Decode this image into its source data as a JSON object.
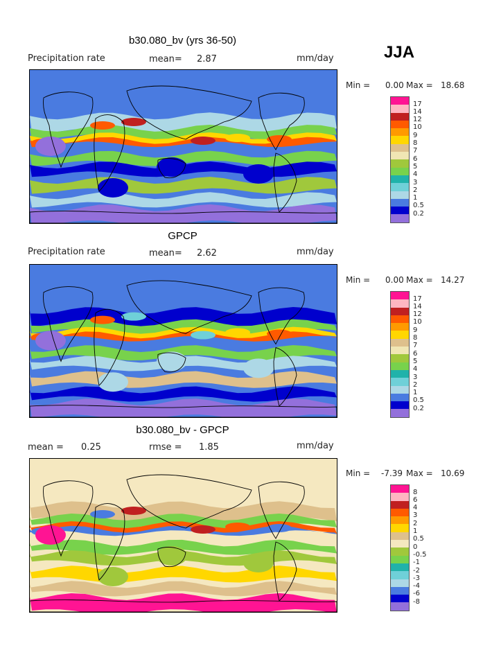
{
  "season": "JJA",
  "panels": [
    {
      "title": "b30.080_bv (yrs 36-50)",
      "left_label": "Precipitation rate",
      "mean_label": "mean=",
      "mean_value": "2.87",
      "extra_label": "",
      "extra_value": "",
      "units": "mm/day",
      "min_label": "Min =",
      "min_value": "0.00",
      "max_label": "Max =",
      "max_value": "18.68",
      "colorbar": {
        "labels": [
          "17",
          "14",
          "12",
          "10",
          "9",
          "8",
          "7",
          "6",
          "5",
          "4",
          "3",
          "2",
          "1",
          "0.5",
          "0.2"
        ],
        "colors": [
          "#ff1493",
          "#ffb6c1",
          "#c02020",
          "#ff5a00",
          "#ff9a00",
          "#ffd700",
          "#dec08c",
          "#f0e6b4",
          "#a0c83c",
          "#78d24c",
          "#20b2aa",
          "#6fd0d8",
          "#add8e6",
          "#4a7be0",
          "#0000cd",
          "#9370db"
        ]
      },
      "map_palette": "model"
    },
    {
      "title": "GPCP",
      "left_label": "Precipitation rate",
      "mean_label": "mean=",
      "mean_value": "2.62",
      "extra_label": "",
      "extra_value": "",
      "units": "mm/day",
      "min_label": "Min =",
      "min_value": "0.00",
      "max_label": "Max =",
      "max_value": "14.27",
      "colorbar": {
        "labels": [
          "17",
          "14",
          "12",
          "10",
          "9",
          "8",
          "7",
          "6",
          "5",
          "4",
          "3",
          "2",
          "1",
          "0.5",
          "0.2"
        ],
        "colors": [
          "#ff1493",
          "#ffb6c1",
          "#c02020",
          "#ff5a00",
          "#ff9a00",
          "#ffd700",
          "#dec08c",
          "#f0e6b4",
          "#a0c83c",
          "#78d24c",
          "#20b2aa",
          "#6fd0d8",
          "#add8e6",
          "#4a7be0",
          "#0000cd",
          "#9370db"
        ]
      },
      "map_palette": "obs"
    },
    {
      "title": "b30.080_bv - GPCP",
      "left_label": "mean =",
      "mean_label": "",
      "mean_value": "0.25",
      "extra_label": "rmse =",
      "extra_value": "1.85",
      "units": "mm/day",
      "min_label": "Min =",
      "min_value": "-7.39",
      "max_label": "Max =",
      "max_value": "10.69",
      "colorbar": {
        "labels": [
          "8",
          "6",
          "4",
          "3",
          "2",
          "1",
          "0.5",
          "0",
          "-0.5",
          "-1",
          "-2",
          "-3",
          "-4",
          "-6",
          "-8"
        ],
        "colors": [
          "#ff1493",
          "#ffb6c1",
          "#c02020",
          "#ff5a00",
          "#ff9a00",
          "#ffd700",
          "#dec08c",
          "#f5e8c0",
          "#a0c83c",
          "#78d24c",
          "#20b2aa",
          "#6fd0d8",
          "#add8e6",
          "#4a7be0",
          "#0000cd",
          "#9370db"
        ]
      },
      "map_palette": "diff"
    }
  ]
}
